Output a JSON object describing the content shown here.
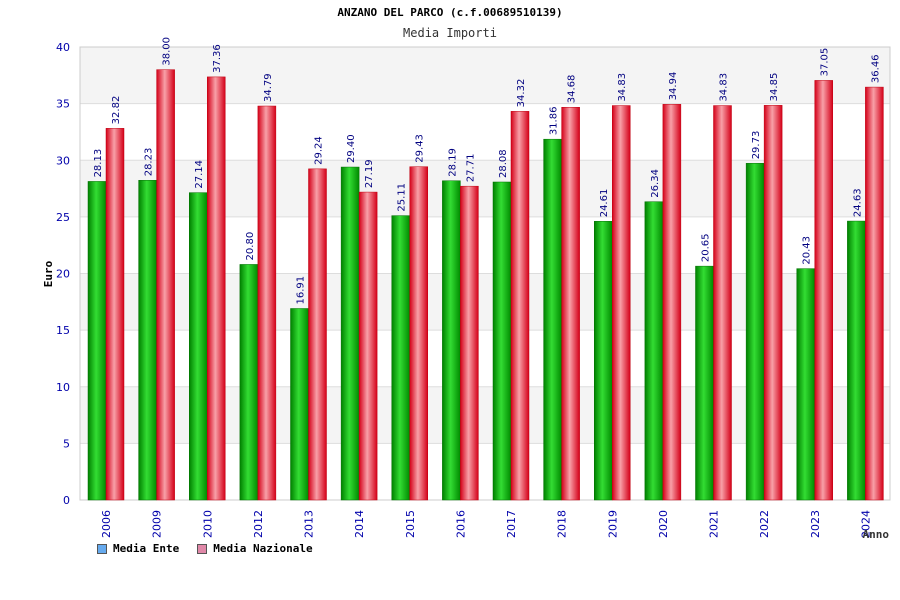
{
  "chart_data": {
    "type": "bar",
    "title": "ANZANO DEL PARCO (c.f.00689510139)",
    "subtitle": "Media Importi",
    "xlabel": "Anno",
    "ylabel": "Euro",
    "ylim": [
      0,
      40
    ],
    "yticks": [
      0,
      5,
      10,
      15,
      20,
      25,
      30,
      35,
      40
    ],
    "grid": true,
    "legend_position": "bottom-left",
    "categories": [
      "2006",
      "2009",
      "2010",
      "2012",
      "2013",
      "2014",
      "2015",
      "2016",
      "2017",
      "2018",
      "2019",
      "2020",
      "2021",
      "2022",
      "2023",
      "2024"
    ],
    "series": [
      {
        "name": "Media Ente",
        "color": "#11a811",
        "legend_color": "#66aaee",
        "values": [
          28.13,
          28.23,
          27.14,
          20.8,
          16.91,
          29.4,
          25.11,
          28.19,
          28.08,
          31.86,
          24.61,
          26.34,
          20.65,
          29.73,
          20.43,
          24.63
        ],
        "labels": [
          "28.13",
          "28.23",
          "27.14",
          "20.80",
          "16.91",
          "29.40",
          "25.11",
          "28.19",
          "28.08",
          "31.86",
          "24.61",
          "26.34",
          "20.65",
          "29.73",
          "20.43",
          "24.63"
        ]
      },
      {
        "name": "Media Nazionale",
        "color": "#e8182c",
        "legend_color": "#e088a8",
        "values": [
          32.82,
          38.0,
          37.36,
          34.79,
          29.24,
          27.19,
          29.43,
          27.71,
          34.32,
          34.68,
          34.83,
          34.94,
          34.83,
          34.85,
          37.05,
          36.46
        ],
        "labels": [
          "32.82",
          "38.00",
          "37.36",
          "34.79",
          "29.24",
          "27.19",
          "29.43",
          "27.71",
          "34.32",
          "34.68",
          "34.83",
          "34.94",
          "34.83",
          "34.85",
          "37.05",
          "36.46"
        ]
      }
    ]
  }
}
